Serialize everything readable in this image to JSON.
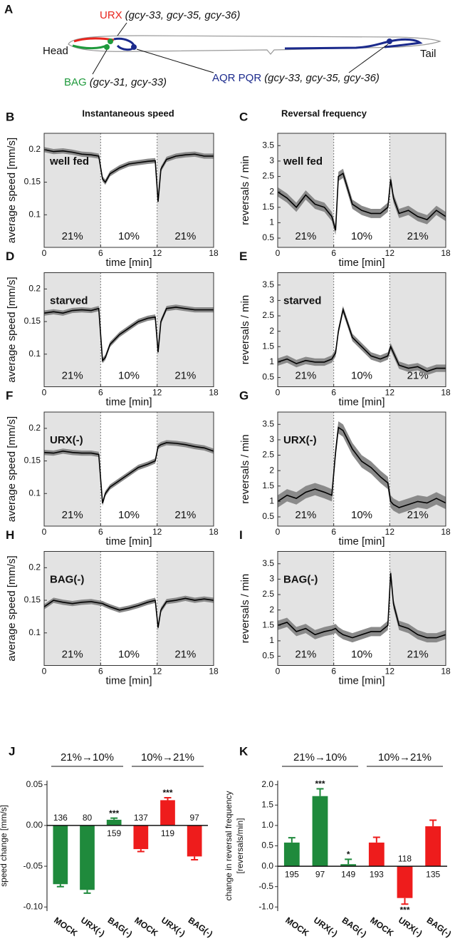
{
  "panel_a": {
    "panel": "A",
    "head": "Head",
    "tail": "Tail",
    "neurons": [
      {
        "name": "URX",
        "genes": "(gcy-33, gcy-35, gcy-36)",
        "color": "#e8251d"
      },
      {
        "name": "BAG",
        "genes": "(gcy-31, gcy-33)",
        "color": "#1f9a3c"
      },
      {
        "name": "AQR PQR",
        "genes": "(gcy-33, gcy-35, gcy-36)",
        "color": "#1b2a8c"
      }
    ]
  },
  "column_titles": [
    "Instantaneous speed",
    "Reversal frequency"
  ],
  "chart_data": [
    {
      "type": "line",
      "panel": "B",
      "condition": "well fed",
      "xlabel": "time [min]",
      "ylabel": "average speed [mm/s]",
      "xlim": [
        0,
        18
      ],
      "xticks": [
        0,
        6,
        12,
        18
      ],
      "ylim": [
        0.05,
        0.225
      ],
      "yticks": [
        0.1,
        0.15,
        0.2
      ],
      "regions": [
        {
          "from": 0,
          "to": 6,
          "label": "21%",
          "shaded": true
        },
        {
          "from": 6,
          "to": 12,
          "label": "10%",
          "shaded": false
        },
        {
          "from": 12,
          "to": 18,
          "label": "21%",
          "shaded": true
        }
      ],
      "x": [
        0,
        1,
        2,
        3,
        4,
        5,
        5.8,
        6.2,
        6.5,
        7,
        8,
        9,
        10,
        11,
        11.8,
        12.1,
        12.4,
        13,
        14,
        15,
        16,
        17,
        18
      ],
      "series": [
        {
          "color": "#000000",
          "band_color": "#8a8a8a",
          "error": 0.004,
          "values": [
            0.2,
            0.197,
            0.198,
            0.196,
            0.193,
            0.192,
            0.19,
            0.155,
            0.15,
            0.163,
            0.172,
            0.178,
            0.18,
            0.182,
            0.183,
            0.12,
            0.17,
            0.185,
            0.19,
            0.192,
            0.193,
            0.19,
            0.19
          ]
        }
      ]
    },
    {
      "type": "line",
      "panel": "C",
      "condition": "well fed",
      "xlabel": "time [min]",
      "ylabel": "reversals / min",
      "xlim": [
        0,
        18
      ],
      "xticks": [
        0,
        6,
        12,
        18
      ],
      "ylim": [
        0.2,
        3.9
      ],
      "yticks": [
        0.5,
        1,
        1.5,
        2,
        2.5,
        3,
        3.5
      ],
      "regions": [
        {
          "from": 0,
          "to": 6,
          "label": "21%",
          "shaded": true
        },
        {
          "from": 6,
          "to": 12,
          "label": "10%",
          "shaded": false
        },
        {
          "from": 12,
          "to": 18,
          "label": "21%",
          "shaded": true
        }
      ],
      "x": [
        0,
        1,
        2,
        3,
        4,
        5,
        5.8,
        6.2,
        6.5,
        7,
        8,
        9,
        10,
        11,
        11.8,
        12.1,
        12.4,
        13,
        14,
        15,
        16,
        17,
        18
      ],
      "series": [
        {
          "color": "#000000",
          "band_color": "#8a8a8a",
          "error": 0.15,
          "values": [
            2.0,
            1.8,
            1.5,
            1.9,
            1.6,
            1.5,
            1.2,
            0.75,
            2.5,
            2.6,
            1.6,
            1.4,
            1.3,
            1.3,
            1.5,
            2.4,
            1.8,
            1.3,
            1.4,
            1.2,
            1.1,
            1.4,
            1.2
          ]
        }
      ]
    },
    {
      "type": "line",
      "panel": "D",
      "condition": "starved",
      "xlabel": "time [min]",
      "ylabel": "average speed [mm/s]",
      "xlim": [
        0,
        18
      ],
      "xticks": [
        0,
        6,
        12,
        18
      ],
      "ylim": [
        0.05,
        0.225
      ],
      "yticks": [
        0.1,
        0.15,
        0.2
      ],
      "regions": [
        {
          "from": 0,
          "to": 6,
          "label": "21%",
          "shaded": true
        },
        {
          "from": 6,
          "to": 12,
          "label": "10%",
          "shaded": false
        },
        {
          "from": 12,
          "to": 18,
          "label": "21%",
          "shaded": true
        }
      ],
      "x": [
        0,
        1,
        2,
        3,
        4,
        5,
        5.8,
        6.2,
        6.5,
        7,
        8,
        9,
        10,
        11,
        11.8,
        12.1,
        12.4,
        13,
        14,
        15,
        16,
        17,
        18
      ],
      "series": [
        {
          "color": "#000000",
          "band_color": "#8a8a8a",
          "error": 0.004,
          "values": [
            0.163,
            0.165,
            0.163,
            0.167,
            0.168,
            0.167,
            0.17,
            0.09,
            0.095,
            0.115,
            0.13,
            0.14,
            0.15,
            0.155,
            0.157,
            0.103,
            0.15,
            0.17,
            0.172,
            0.17,
            0.168,
            0.168,
            0.168
          ]
        }
      ]
    },
    {
      "type": "line",
      "panel": "E",
      "condition": "starved",
      "xlabel": "time [min]",
      "ylabel": "reversals / min",
      "xlim": [
        0,
        18
      ],
      "xticks": [
        0,
        6,
        12,
        18
      ],
      "ylim": [
        0.2,
        3.9
      ],
      "yticks": [
        0.5,
        1,
        1.5,
        2,
        2.5,
        3,
        3.5
      ],
      "regions": [
        {
          "from": 0,
          "to": 6,
          "label": "21%",
          "shaded": true
        },
        {
          "from": 6,
          "to": 12,
          "label": "10%",
          "shaded": false
        },
        {
          "from": 12,
          "to": 18,
          "label": "21%",
          "shaded": true
        }
      ],
      "x": [
        0,
        1,
        2,
        3,
        4,
        5,
        5.8,
        6.2,
        6.5,
        7,
        8,
        9,
        10,
        11,
        11.8,
        12.1,
        12.4,
        13,
        14,
        15,
        16,
        17,
        18
      ],
      "series": [
        {
          "color": "#000000",
          "band_color": "#8a8a8a",
          "error": 0.12,
          "values": [
            1.0,
            1.1,
            0.95,
            1.05,
            1.0,
            1.0,
            1.1,
            1.3,
            2.0,
            2.7,
            1.8,
            1.5,
            1.2,
            1.1,
            1.2,
            1.5,
            1.3,
            0.9,
            0.8,
            0.85,
            0.7,
            0.8,
            0.8
          ]
        }
      ]
    },
    {
      "type": "line",
      "panel": "F",
      "condition": "URX(-)",
      "xlabel": "time [min]",
      "ylabel": "average speed [mm/s]",
      "xlim": [
        0,
        18
      ],
      "xticks": [
        0,
        6,
        12,
        18
      ],
      "ylim": [
        0.05,
        0.225
      ],
      "yticks": [
        0.1,
        0.15,
        0.2
      ],
      "regions": [
        {
          "from": 0,
          "to": 6,
          "label": "21%",
          "shaded": true
        },
        {
          "from": 6,
          "to": 12,
          "label": "10%",
          "shaded": false
        },
        {
          "from": 12,
          "to": 18,
          "label": "21%",
          "shaded": true
        }
      ],
      "x": [
        0,
        1,
        2,
        3,
        4,
        5,
        5.8,
        6.2,
        6.5,
        7,
        8,
        9,
        10,
        11,
        11.8,
        12.1,
        12.4,
        13,
        14,
        15,
        16,
        17,
        18
      ],
      "series": [
        {
          "color": "#000000",
          "band_color": "#8a8a8a",
          "error": 0.004,
          "values": [
            0.163,
            0.162,
            0.165,
            0.163,
            0.162,
            0.162,
            0.16,
            0.085,
            0.1,
            0.11,
            0.12,
            0.13,
            0.14,
            0.145,
            0.15,
            0.172,
            0.175,
            0.178,
            0.177,
            0.175,
            0.172,
            0.17,
            0.165
          ]
        }
      ]
    },
    {
      "type": "line",
      "panel": "G",
      "condition": "URX(-)",
      "xlabel": "time [min]",
      "ylabel": "reversals / min",
      "xlim": [
        0,
        18
      ],
      "xticks": [
        0,
        6,
        12,
        18
      ],
      "ylim": [
        0.2,
        3.9
      ],
      "yticks": [
        0.5,
        1,
        1.5,
        2,
        2.5,
        3,
        3.5
      ],
      "regions": [
        {
          "from": 0,
          "to": 6,
          "label": "21%",
          "shaded": true
        },
        {
          "from": 6,
          "to": 12,
          "label": "10%",
          "shaded": false
        },
        {
          "from": 12,
          "to": 18,
          "label": "21%",
          "shaded": true
        }
      ],
      "x": [
        0,
        1,
        2,
        3,
        4,
        5,
        5.8,
        6.2,
        6.5,
        7,
        8,
        9,
        10,
        11,
        11.8,
        12.1,
        12.4,
        13,
        14,
        15,
        16,
        17,
        18
      ],
      "series": [
        {
          "color": "#000000",
          "band_color": "#8a8a8a",
          "error": 0.2,
          "values": [
            1.0,
            1.2,
            1.1,
            1.3,
            1.4,
            1.3,
            1.2,
            2.6,
            3.4,
            3.3,
            2.7,
            2.3,
            2.1,
            1.8,
            1.6,
            1.0,
            0.9,
            0.8,
            0.9,
            1.0,
            0.95,
            1.1,
            0.95
          ]
        }
      ]
    },
    {
      "type": "line",
      "panel": "H",
      "condition": "BAG(-)",
      "xlabel": "time [min]",
      "ylabel": "average speed [mm/s]",
      "xlim": [
        0,
        18
      ],
      "xticks": [
        0,
        6,
        12,
        18
      ],
      "ylim": [
        0.05,
        0.225
      ],
      "yticks": [
        0.1,
        0.15,
        0.2
      ],
      "regions": [
        {
          "from": 0,
          "to": 6,
          "label": "21%",
          "shaded": true
        },
        {
          "from": 6,
          "to": 12,
          "label": "10%",
          "shaded": false
        },
        {
          "from": 12,
          "to": 18,
          "label": "21%",
          "shaded": true
        }
      ],
      "x": [
        0,
        1,
        2,
        3,
        4,
        5,
        5.8,
        6.2,
        6.5,
        7,
        8,
        9,
        10,
        11,
        11.8,
        12.1,
        12.4,
        13,
        14,
        15,
        16,
        17,
        18
      ],
      "series": [
        {
          "color": "#000000",
          "band_color": "#8a8a8a",
          "error": 0.004,
          "values": [
            0.14,
            0.15,
            0.147,
            0.145,
            0.147,
            0.148,
            0.146,
            0.145,
            0.143,
            0.14,
            0.135,
            0.138,
            0.142,
            0.147,
            0.15,
            0.108,
            0.135,
            0.148,
            0.15,
            0.153,
            0.15,
            0.152,
            0.15
          ]
        }
      ]
    },
    {
      "type": "line",
      "panel": "I",
      "condition": "BAG(-)",
      "xlabel": "time [min]",
      "ylabel": "reversals / min",
      "xlim": [
        0,
        18
      ],
      "xticks": [
        0,
        6,
        12,
        18
      ],
      "ylim": [
        0.2,
        3.9
      ],
      "yticks": [
        0.5,
        1,
        1.5,
        2,
        2.5,
        3,
        3.5
      ],
      "regions": [
        {
          "from": 0,
          "to": 6,
          "label": "21%",
          "shaded": true
        },
        {
          "from": 6,
          "to": 12,
          "label": "10%",
          "shaded": false
        },
        {
          "from": 12,
          "to": 18,
          "label": "21%",
          "shaded": true
        }
      ],
      "x": [
        0,
        1,
        2,
        3,
        4,
        5,
        5.8,
        6.2,
        6.5,
        7,
        8,
        9,
        10,
        11,
        11.8,
        12.1,
        12.4,
        13,
        14,
        15,
        16,
        17,
        18
      ],
      "series": [
        {
          "color": "#000000",
          "band_color": "#8a8a8a",
          "error": 0.15,
          "values": [
            1.5,
            1.6,
            1.3,
            1.4,
            1.2,
            1.3,
            1.35,
            1.4,
            1.3,
            1.2,
            1.1,
            1.2,
            1.3,
            1.3,
            1.5,
            3.2,
            2.2,
            1.5,
            1.4,
            1.2,
            1.1,
            1.1,
            1.2
          ]
        }
      ]
    },
    {
      "type": "bar",
      "panel": "J",
      "ylabel": [
        "speed change [mm/s]"
      ],
      "groups": [
        "21%→10%",
        "10%→21%"
      ],
      "categories": [
        "MOCK",
        "URX(-)",
        "BAG(-)",
        "MOCK",
        "URX(-)",
        "BAG(-)"
      ],
      "values": [
        -0.072,
        -0.079,
        0.007,
        -0.029,
        0.031,
        -0.038
      ],
      "errors": [
        0.003,
        0.004,
        0.002,
        0.003,
        0.003,
        0.004
      ],
      "counts": [
        136,
        80,
        159,
        137,
        119,
        97
      ],
      "significance": [
        null,
        null,
        "***",
        null,
        "***",
        null
      ],
      "colors": [
        "#1f8a3c",
        "#1f8a3c",
        "#1f8a3c",
        "#ee1c1c",
        "#ee1c1c",
        "#ee1c1c"
      ],
      "ylim": [
        -0.105,
        0.055
      ],
      "yticks": [
        0.05,
        {
          "value": 0,
          "label": "0.00"
        },
        -0.05,
        {
          "value": -0.1,
          "label": "-0.10"
        }
      ]
    },
    {
      "type": "bar",
      "panel": "K",
      "ylabel": [
        "change in reversal frequency",
        "[reversals/min]"
      ],
      "groups": [
        "21%→10%",
        "10%→21%"
      ],
      "categories": [
        "MOCK",
        "URX(-)",
        "BAG(-)",
        "MOCK",
        "URX(-)",
        "BAG(-)"
      ],
      "values": [
        0.58,
        1.72,
        0.05,
        0.58,
        -0.78,
        0.98
      ],
      "errors": [
        0.12,
        0.18,
        0.12,
        0.13,
        0.15,
        0.15
      ],
      "counts": [
        195,
        97,
        149,
        193,
        118,
        135
      ],
      "significance": [
        null,
        "***",
        "*",
        null,
        "***",
        null
      ],
      "colors": [
        "#1f8a3c",
        "#1f8a3c",
        "#1f8a3c",
        "#ee1c1c",
        "#ee1c1c",
        "#ee1c1c"
      ],
      "ylim": [
        -1.1,
        2.1
      ],
      "yticks": [
        {
          "value": 2,
          "label": "2.0"
        },
        1.5,
        {
          "value": 1,
          "label": "1.0"
        },
        0.5,
        {
          "value": 0,
          "label": "0.0"
        },
        -0.5,
        {
          "value": -1,
          "label": "-1.0"
        }
      ]
    }
  ]
}
